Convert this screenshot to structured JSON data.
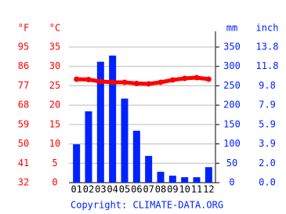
{
  "chart_data": {
    "type": "bar",
    "categories": [
      "01",
      "02",
      "03",
      "04",
      "05",
      "06",
      "07",
      "08",
      "09",
      "10",
      "11",
      "12"
    ],
    "series": [
      {
        "type": "bar",
        "axis": "y2",
        "color": "#0022ff",
        "values": [
          99,
          184,
          312,
          328,
          217,
          134,
          69,
          28,
          18,
          14,
          14,
          40
        ]
      },
      {
        "type": "line",
        "axis": "y",
        "color": "#ff0000",
        "values": [
          26.7,
          26.6,
          26.1,
          25.9,
          25.9,
          25.6,
          25.5,
          25.9,
          26.5,
          26.9,
          27.1,
          26.7
        ]
      }
    ],
    "y_label": "°C",
    "y_label_outer": "°F",
    "y2_label": "mm",
    "y2_label_outer": "inch",
    "ylim": [
      0,
      35
    ],
    "yticks": [
      0,
      5,
      10,
      15,
      20,
      25,
      30,
      35
    ],
    "fticks": [
      {
        "value": 0,
        "label": "32"
      },
      {
        "value": 5,
        "label": "41"
      },
      {
        "value": 10,
        "label": "50"
      },
      {
        "value": 15,
        "label": "59"
      },
      {
        "value": 20,
        "label": "68"
      },
      {
        "value": 25,
        "label": "77"
      },
      {
        "value": 30,
        "label": "86"
      },
      {
        "value": 35,
        "label": "95"
      }
    ],
    "y2lim": [
      0,
      350
    ],
    "y2ticks": [
      0,
      50,
      100,
      150,
      200,
      250,
      300,
      350
    ],
    "inch_ticks": [
      {
        "value": 0,
        "label": "0.0"
      },
      {
        "value": 50,
        "label": "2.0"
      },
      {
        "value": 100,
        "label": "3.9"
      },
      {
        "value": 150,
        "label": "5.9"
      },
      {
        "value": 200,
        "label": "7.9"
      },
      {
        "value": 250,
        "label": "9.8"
      },
      {
        "value": 300,
        "label": "11.8"
      },
      {
        "value": 350,
        "label": "13.8"
      }
    ],
    "grid": true,
    "footer": "Copyright: CLIMATE-DATA.ORG"
  }
}
